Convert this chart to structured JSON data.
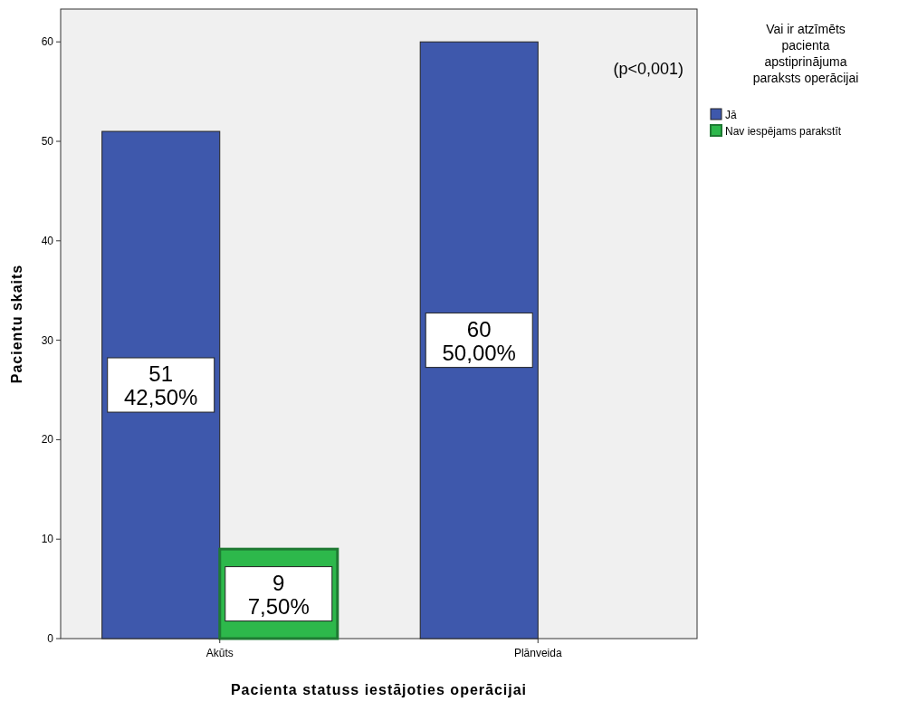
{
  "chart_data": {
    "type": "bar",
    "xlabel": "Pacienta statuss iestājoties operācijai",
    "ylabel": "Pacientu skaits",
    "legend_title": "Vai ir atzīmēts pacienta apstiprinājuma paraksts operācijai",
    "categories": [
      "Akūts",
      "Plānveida"
    ],
    "series": [
      {
        "name": "Jā",
        "color": "#3e58ac",
        "values": [
          51,
          60
        ],
        "value_labels": [
          "51\n42,50%",
          "60\n50,00%"
        ]
      },
      {
        "name": "Nav iespējams parakstīt",
        "color": "#2db84b",
        "values": [
          9,
          null
        ],
        "value_labels": [
          "9\n7,50%",
          null
        ]
      }
    ],
    "ylim": [
      0,
      63.3
    ],
    "yticks": [
      0,
      10,
      20,
      30,
      40,
      50,
      60
    ],
    "grid": false,
    "legend": "right",
    "annotations": [
      "(p<0,001)"
    ]
  }
}
